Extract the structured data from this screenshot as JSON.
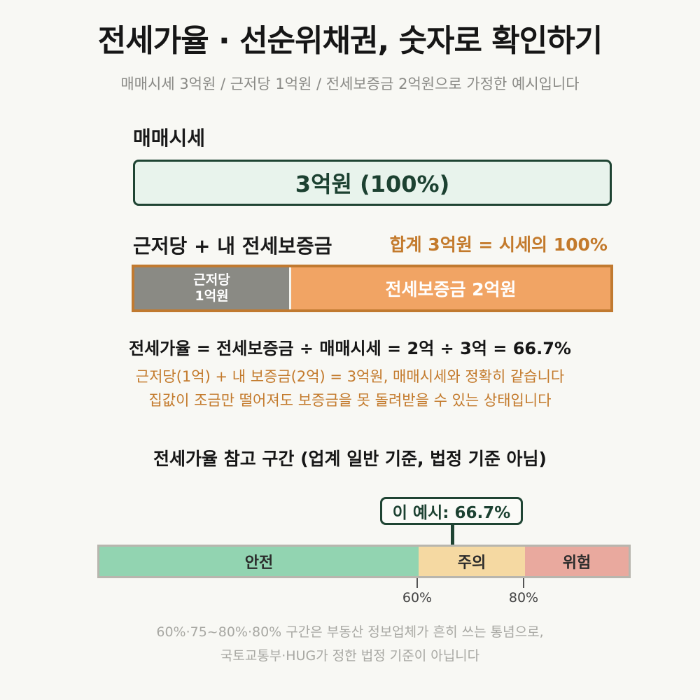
{
  "header": {
    "title": "전세가율 · 선순위채권, 숫자로 확인하기",
    "subtitle": "매매시세 3억원 / 근저당 1억원 / 전세보증금 2억원으로 가정한 예시입니다"
  },
  "market_price": {
    "label": "매매시세",
    "value_text": "3억원 (100%)"
  },
  "combined": {
    "label": "근저당 + 내 전세보증금",
    "total_text": "합계 3억원 = 시세의 100%",
    "segments": [
      {
        "name": "근저당",
        "line1": "근저당",
        "line2": "1억원",
        "value": 1,
        "color": "#8a8a84"
      },
      {
        "name": "전세보증금",
        "text": "전세보증금 2억원",
        "value": 2,
        "color": "#f1a464"
      }
    ]
  },
  "explanation": {
    "formula": "전세가율 = 전세보증금 ÷ 매매시세 = 2억 ÷ 3억 = 66.7%",
    "note1": "근저당(1억) + 내 보증금(2억) = 3억원, 매매시세와 정확히 같습니다",
    "note2": "집값이 조금만 떨어져도 보증금을 못 돌려받을 수 있는 상태입니다"
  },
  "reference": {
    "title": "전세가율 참고 구간 (업계 일반 기준, 법정 기준 아님)",
    "marker_text": "이 예시: 66.7%",
    "marker_value": 66.7,
    "zones": [
      {
        "label": "안전",
        "from": 0,
        "to": 60,
        "color": "#92d4b1"
      },
      {
        "label": "주의",
        "from": 60,
        "to": 80,
        "color": "#f5d9a2"
      },
      {
        "label": "위험",
        "from": 80,
        "to": 100,
        "color": "#e9a99e"
      }
    ],
    "ticks": [
      "60%",
      "80%"
    ]
  },
  "footnote": {
    "line1": "60%·75~80%·80% 구간은 부동산 정보업체가 흔히 쓰는 통념으로,",
    "line2": "국토교통부·HUG가 정한 법정 기준이 아닙니다"
  }
}
